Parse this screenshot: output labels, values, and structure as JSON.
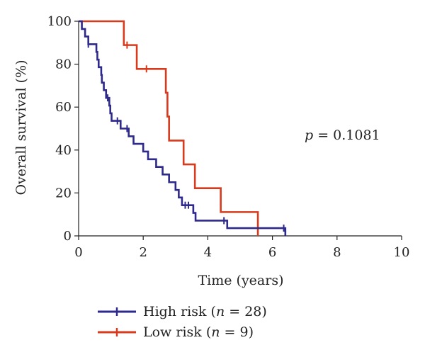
{
  "chart_data": {
    "type": "line",
    "step": true,
    "xlabel": "Time (years)",
    "ylabel": "Overall survival (%)",
    "xlim": [
      0,
      10
    ],
    "ylim": [
      0,
      100
    ],
    "xticks": [
      0,
      2,
      4,
      6,
      8,
      10
    ],
    "yticks": [
      0,
      20,
      40,
      60,
      80,
      100
    ],
    "grid": false,
    "legend_position": "bottom",
    "annotation": {
      "prefix": "p",
      "text": " = 0.1081"
    },
    "series": [
      {
        "name": "High risk",
        "n_label": "n",
        "n_text": " = 28)",
        "color": "#2e2a8c",
        "points": [
          [
            0,
            100
          ],
          [
            0.1,
            96.4
          ],
          [
            0.2,
            92.9
          ],
          [
            0.3,
            89.3
          ],
          [
            0.55,
            85.7
          ],
          [
            0.58,
            82.1
          ],
          [
            0.62,
            78.6
          ],
          [
            0.7,
            75
          ],
          [
            0.72,
            71.4
          ],
          [
            0.78,
            67.9
          ],
          [
            0.85,
            64.3
          ],
          [
            0.95,
            60.7
          ],
          [
            0.98,
            57.1
          ],
          [
            1.02,
            53.6
          ],
          [
            1.3,
            50
          ],
          [
            1.55,
            46.4
          ],
          [
            1.7,
            42.9
          ],
          [
            2.0,
            39.3
          ],
          [
            2.15,
            35.7
          ],
          [
            2.4,
            32.1
          ],
          [
            2.6,
            28.6
          ],
          [
            2.8,
            25
          ],
          [
            3.0,
            21.4
          ],
          [
            3.1,
            17.9
          ],
          [
            3.2,
            14.3
          ],
          [
            3.55,
            10.7
          ],
          [
            3.62,
            7.1
          ],
          [
            4.6,
            3.6
          ],
          [
            6.4,
            0
          ]
        ],
        "censored": [
          [
            0.3,
            89.3
          ],
          [
            0.9,
            64.3
          ],
          [
            1.2,
            53.6
          ],
          [
            1.5,
            50
          ],
          [
            3.3,
            14.3
          ],
          [
            3.4,
            14.3
          ],
          [
            4.5,
            7.1
          ],
          [
            6.35,
            3.6
          ]
        ]
      },
      {
        "name": "Low risk",
        "n_label": "n",
        "n_text": " = 9)",
        "color": "#d73a1c",
        "points": [
          [
            0,
            100
          ],
          [
            1.4,
            88.9
          ],
          [
            1.8,
            77.8
          ],
          [
            2.7,
            66.7
          ],
          [
            2.75,
            55.6
          ],
          [
            2.8,
            44.4
          ],
          [
            3.25,
            33.3
          ],
          [
            3.6,
            22.2
          ],
          [
            4.4,
            11.1
          ],
          [
            5.55,
            0
          ]
        ],
        "censored": [
          [
            1.5,
            88.9
          ],
          [
            2.1,
            77.8
          ]
        ]
      }
    ]
  }
}
